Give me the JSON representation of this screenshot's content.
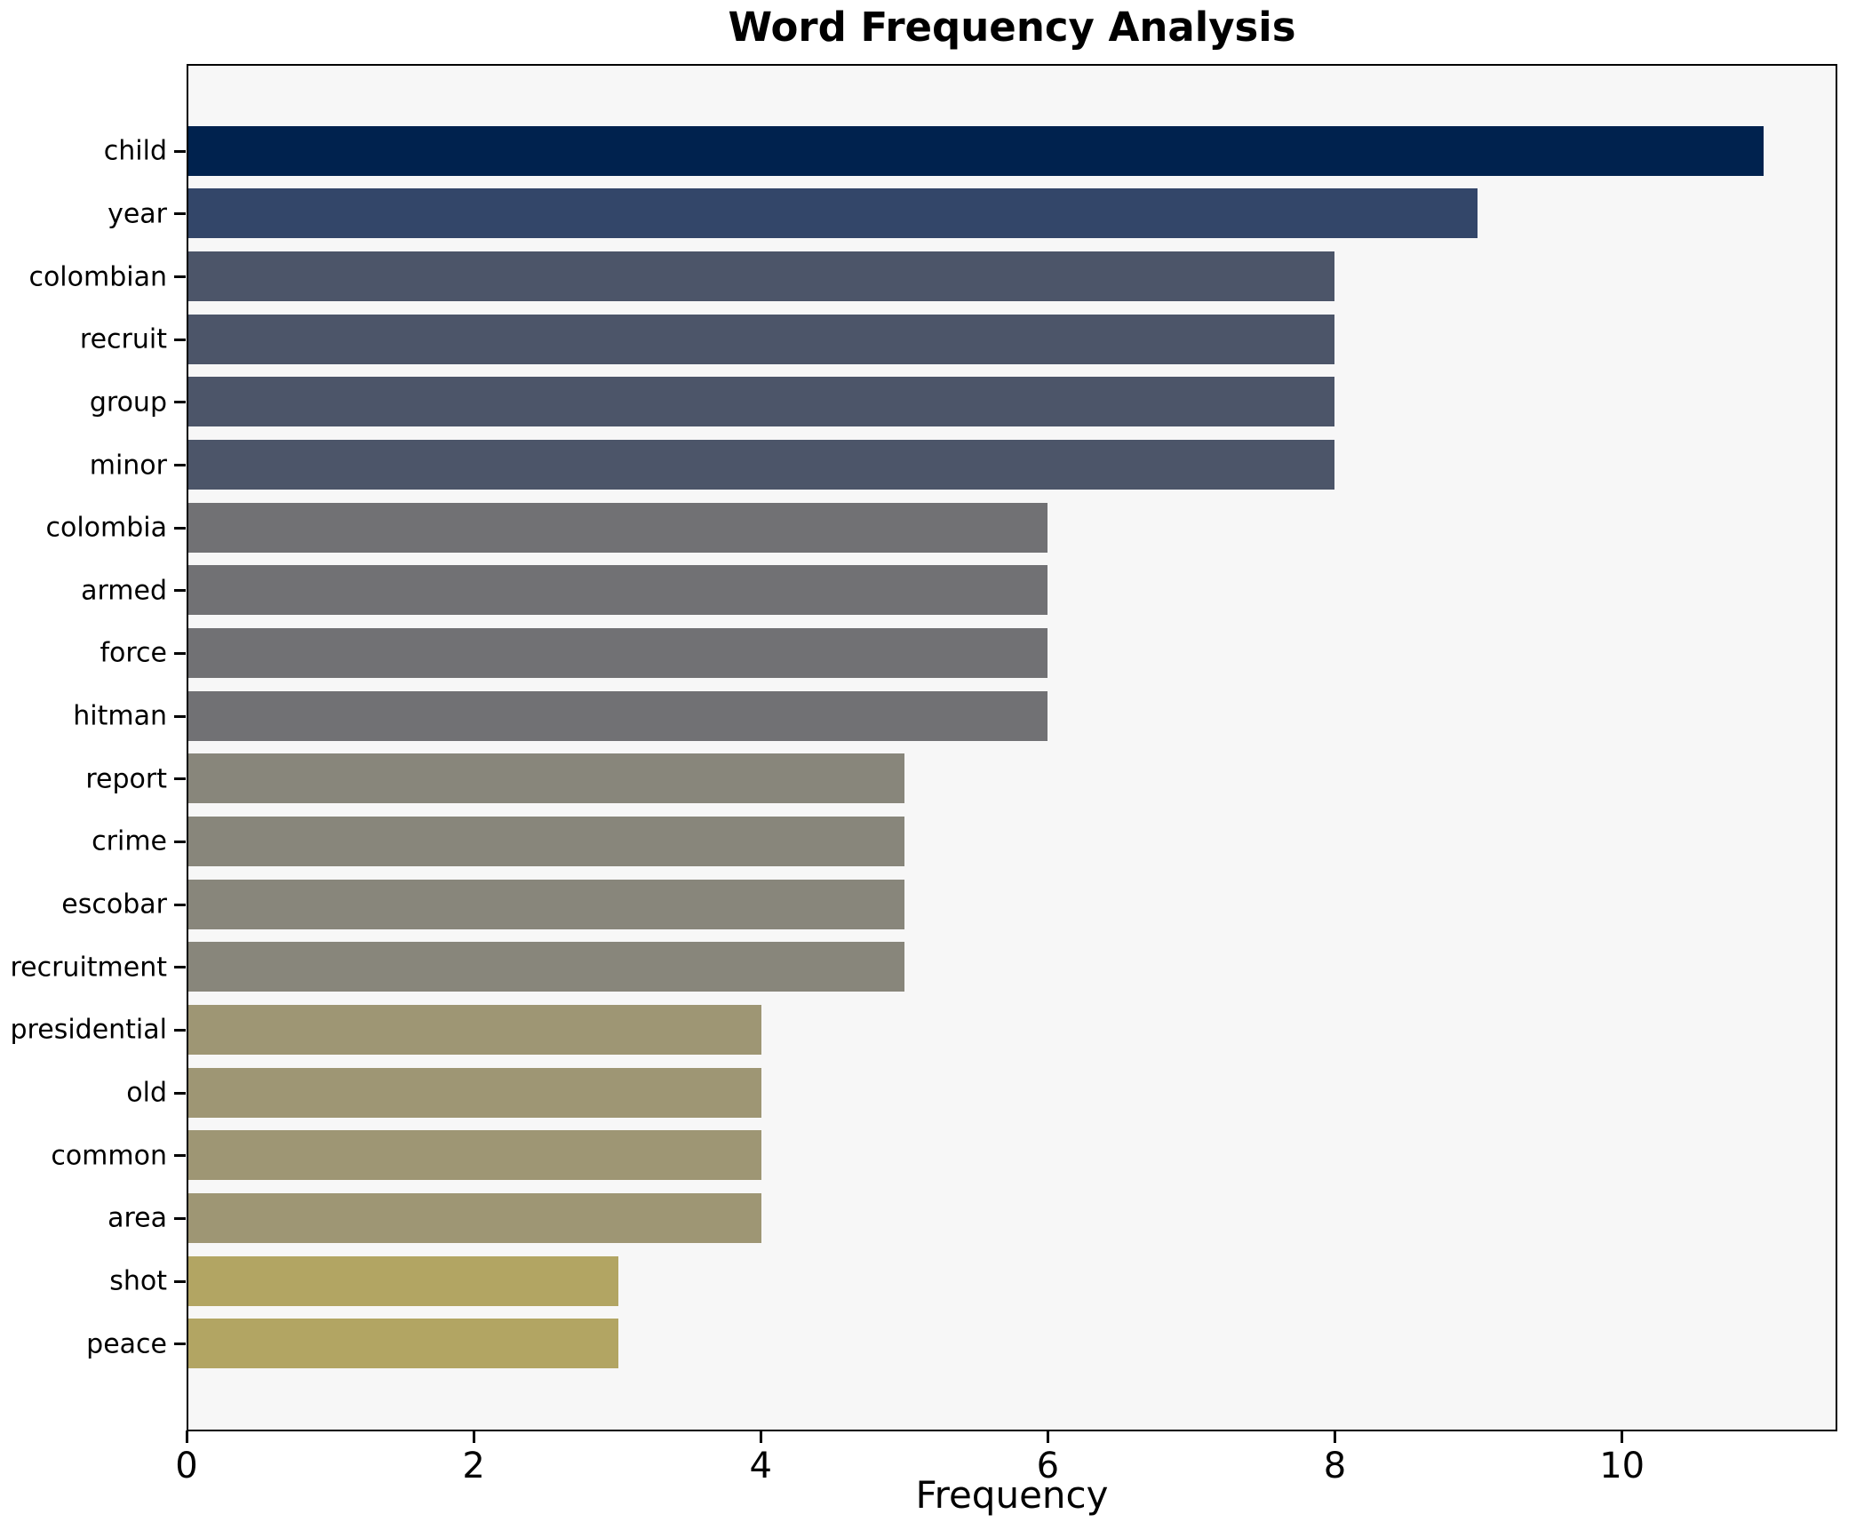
{
  "title": "Word Frequency Analysis",
  "chart_data": {
    "type": "bar",
    "orientation": "horizontal",
    "title": "Word Frequency Analysis",
    "xlabel": "Frequency",
    "ylabel": "",
    "categories": [
      "child",
      "year",
      "colombian",
      "recruit",
      "group",
      "minor",
      "colombia",
      "armed",
      "force",
      "hitman",
      "report",
      "crime",
      "escobar",
      "recruitment",
      "presidential",
      "old",
      "common",
      "area",
      "shot",
      "peace"
    ],
    "values": [
      11,
      9,
      8,
      8,
      8,
      8,
      6,
      6,
      6,
      6,
      5,
      5,
      5,
      5,
      4,
      4,
      4,
      4,
      3,
      3
    ],
    "bar_colors": [
      "#00224e",
      "#334669",
      "#4c5569",
      "#4c5569",
      "#4c5569",
      "#4c5569",
      "#717174",
      "#717174",
      "#717174",
      "#717174",
      "#88867b",
      "#88867b",
      "#88867b",
      "#88867b",
      "#9e9674",
      "#9e9674",
      "#9e9674",
      "#9e9674",
      "#b2a563",
      "#b2a563"
    ],
    "xlim": [
      0,
      11.5
    ],
    "x_ticks": [
      0,
      2,
      4,
      6,
      8,
      10
    ],
    "grid": false,
    "legend": "none",
    "plot_background": "#f7f7f7",
    "figure_background": "#ffffff",
    "frame_color": "#000000"
  }
}
